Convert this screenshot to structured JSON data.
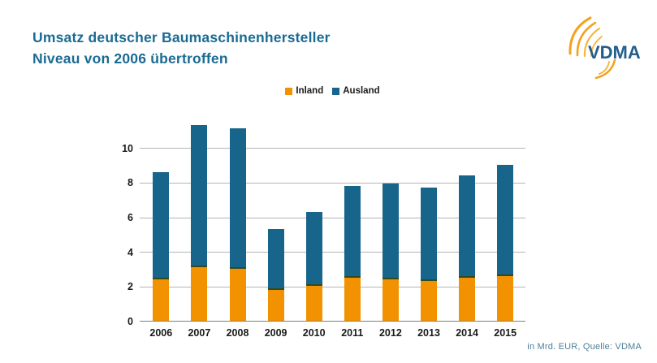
{
  "title": {
    "line1": "Umsatz deutscher Baumaschinenhersteller",
    "line2": "Niveau von 2006 übertroffen"
  },
  "legend": [
    {
      "label": "Inland",
      "color": "#F39200"
    },
    {
      "label": "Ausland",
      "color": "#17658A"
    }
  ],
  "footnote": "in Mrd. EUR, Quelle: VDMA",
  "logo": {
    "text": "VDMA"
  },
  "colors": {
    "inland": "#F39200",
    "ausland": "#17658A",
    "title_text": "#1A6B94",
    "footnote_text": "#4E7F99",
    "logo_text": "#235E8C",
    "logo_arc_outer": "#F2A31F",
    "logo_arc_inner": "#F6B63F",
    "gridline": "#B4B4B4",
    "axis_line": "#808080",
    "segment_divider": "#33491F"
  },
  "chart_data": {
    "type": "bar",
    "stacked": true,
    "title": "Umsatz deutscher Baumaschinenhersteller – Niveau von 2006 übertroffen",
    "unit": "Mrd. EUR",
    "categories": [
      "2006",
      "2007",
      "2008",
      "2009",
      "2010",
      "2011",
      "2012",
      "2013",
      "2014",
      "2015"
    ],
    "series": [
      {
        "name": "Inland",
        "color": "#F39200",
        "values": [
          2.4,
          3.1,
          3.0,
          1.8,
          2.0,
          2.5,
          2.4,
          2.3,
          2.5,
          2.6
        ]
      },
      {
        "name": "Ausland",
        "color": "#17658A",
        "values": [
          6.2,
          8.2,
          8.1,
          3.5,
          4.3,
          5.3,
          5.5,
          5.4,
          5.9,
          6.4
        ]
      }
    ],
    "totals": [
      8.6,
      11.3,
      11.1,
      5.3,
      6.3,
      7.8,
      7.9,
      7.7,
      8.4,
      9.0
    ],
    "xlabel": "",
    "ylabel": "",
    "yticks": [
      0,
      2,
      4,
      6,
      8,
      10
    ],
    "ylim": [
      0,
      11.625
    ],
    "grid": true,
    "legend_position": "top-center"
  }
}
